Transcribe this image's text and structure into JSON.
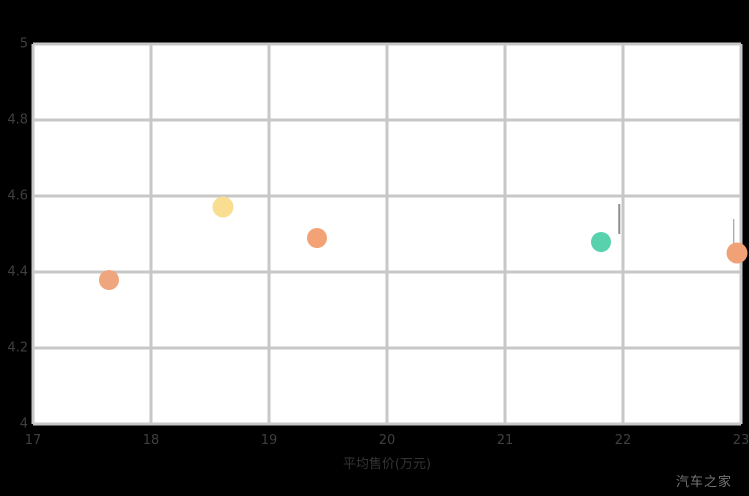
{
  "footer": {
    "watermark": "汽车之家"
  },
  "chart_data": {
    "type": "scatter",
    "title": "",
    "xlabel": "平均售价(万元)",
    "ylabel": "",
    "xlim": [
      17,
      23
    ],
    "ylim": [
      4,
      5
    ],
    "x_ticks": [
      "17",
      "18",
      "19",
      "20",
      "21",
      "22",
      "23"
    ],
    "y_ticks": [
      "4",
      "4.2",
      "4.4",
      "4.6",
      "4.8",
      "5"
    ],
    "grid": true,
    "legend": false,
    "grid_color": "#c7c7c7",
    "plot_background": "#ffffff",
    "page_background": "#000000",
    "points": [
      {
        "x": 17.64,
        "y": 4.38,
        "color": "#efa57e",
        "size": 20
      },
      {
        "x": 18.61,
        "y": 4.57,
        "color": "#f9dd90",
        "size": 21
      },
      {
        "x": 19.41,
        "y": 4.49,
        "color": "#f2a274",
        "size": 20
      },
      {
        "x": 21.81,
        "y": 4.48,
        "color": "#57d2ac",
        "size": 20
      },
      {
        "x": 22.97,
        "y": 4.45,
        "color": "#f0a176",
        "size": 21
      }
    ],
    "leader_lines": [
      {
        "x": 21.97,
        "y_top": 4.58,
        "y_bottom": 4.5
      },
      {
        "x": 22.94,
        "y_top": 4.54,
        "y_bottom": 4.47
      }
    ]
  }
}
